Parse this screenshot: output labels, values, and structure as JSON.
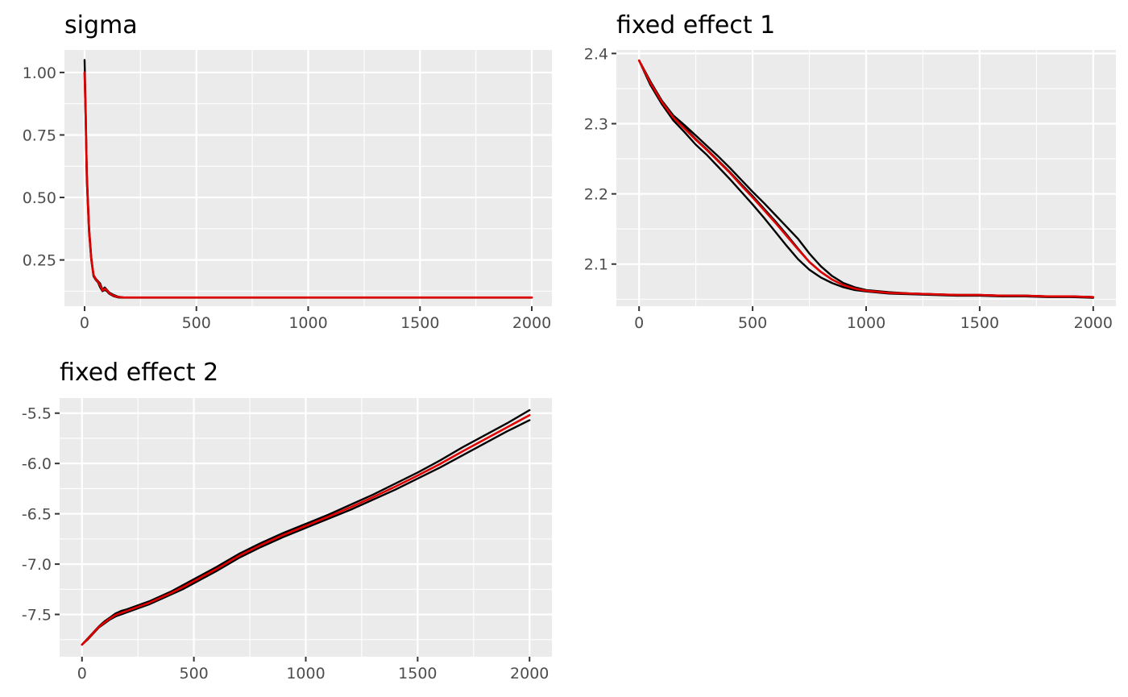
{
  "chart_data": [
    {
      "type": "line",
      "title": "sigma",
      "xlabel": "",
      "ylabel": "",
      "xlim": [
        -90,
        2090
      ],
      "ylim": [
        0.065,
        1.09
      ],
      "x_ticks": [
        0,
        500,
        1000,
        1500,
        2000
      ],
      "x_tick_labels": [
        "0",
        "500",
        "1000",
        "1500",
        "2000"
      ],
      "y_ticks": [
        0.25,
        0.5,
        0.75,
        1.0
      ],
      "y_tick_labels": [
        "0.25",
        "0.50",
        "0.75",
        "1.00"
      ],
      "grid": true,
      "legend": "none",
      "series": [
        {
          "color": "#000000",
          "x": [
            0,
            5,
            10,
            20,
            30,
            40,
            50,
            60,
            70,
            80,
            90,
            100,
            110,
            120,
            130,
            150,
            175,
            200,
            300,
            500,
            1000,
            1500,
            2000
          ],
          "y": [
            1.05,
            0.85,
            0.6,
            0.38,
            0.26,
            0.19,
            0.175,
            0.165,
            0.155,
            0.13,
            0.14,
            0.13,
            0.12,
            0.115,
            0.11,
            0.103,
            0.1,
            0.1,
            0.1,
            0.1,
            0.1,
            0.1,
            0.1
          ]
        },
        {
          "color": "#000000",
          "x": [
            0,
            5,
            10,
            20,
            30,
            40,
            50,
            60,
            70,
            80,
            90,
            100,
            110,
            120,
            130,
            150,
            175,
            200,
            300,
            500,
            1000,
            1500,
            2000
          ],
          "y": [
            1.0,
            0.8,
            0.57,
            0.36,
            0.25,
            0.185,
            0.17,
            0.16,
            0.14,
            0.125,
            0.13,
            0.125,
            0.115,
            0.11,
            0.105,
            0.1,
            0.099,
            0.099,
            0.099,
            0.099,
            0.099,
            0.099,
            0.099
          ]
        },
        {
          "color": "#e00000",
          "x": [
            0,
            5,
            10,
            20,
            30,
            40,
            50,
            60,
            70,
            80,
            90,
            100,
            110,
            120,
            130,
            150,
            175,
            200,
            300,
            500,
            1000,
            1500,
            2000
          ],
          "y": [
            1.0,
            0.82,
            0.58,
            0.37,
            0.255,
            0.19,
            0.172,
            0.162,
            0.148,
            0.128,
            0.135,
            0.128,
            0.118,
            0.112,
            0.107,
            0.102,
            0.1,
            0.1,
            0.1,
            0.1,
            0.1,
            0.1,
            0.1
          ]
        }
      ]
    },
    {
      "type": "line",
      "title": "fixed effect 1",
      "xlabel": "",
      "ylabel": "",
      "xlim": [
        -100,
        2100
      ],
      "ylim": [
        2.04,
        2.405
      ],
      "x_ticks": [
        0,
        500,
        1000,
        1500,
        2000
      ],
      "x_tick_labels": [
        "0",
        "500",
        "1000",
        "1500",
        "2000"
      ],
      "y_ticks": [
        2.1,
        2.2,
        2.3,
        2.4
      ],
      "y_tick_labels": [
        "2.1",
        "2.2",
        "2.3",
        "2.4"
      ],
      "grid": true,
      "legend": "none",
      "series": [
        {
          "color": "#000000",
          "x": [
            0,
            50,
            100,
            150,
            200,
            250,
            300,
            350,
            400,
            450,
            500,
            550,
            600,
            650,
            700,
            750,
            800,
            850,
            900,
            950,
            1000,
            1100,
            1200,
            1300,
            1400,
            1500,
            1600,
            1700,
            1800,
            1900,
            2000
          ],
          "y": [
            2.39,
            2.36,
            2.332,
            2.31,
            2.295,
            2.278,
            2.263,
            2.247,
            2.231,
            2.214,
            2.197,
            2.179,
            2.161,
            2.142,
            2.122,
            2.103,
            2.089,
            2.078,
            2.07,
            2.065,
            2.062,
            2.059,
            2.058,
            2.057,
            2.056,
            2.056,
            2.055,
            2.055,
            2.054,
            2.054,
            2.053
          ]
        },
        {
          "color": "#000000",
          "x": [
            0,
            50,
            100,
            150,
            200,
            250,
            300,
            350,
            400,
            450,
            500,
            550,
            600,
            650,
            700,
            750,
            800,
            850,
            900,
            950,
            1000,
            1100,
            1200,
            1300,
            1400,
            1500,
            1600,
            1700,
            1800,
            1900,
            2000
          ],
          "y": [
            2.39,
            2.355,
            2.328,
            2.305,
            2.288,
            2.27,
            2.255,
            2.238,
            2.221,
            2.203,
            2.185,
            2.166,
            2.146,
            2.126,
            2.107,
            2.092,
            2.081,
            2.073,
            2.067,
            2.063,
            2.061,
            2.058,
            2.057,
            2.056,
            2.055,
            2.055,
            2.054,
            2.054,
            2.053,
            2.053,
            2.052
          ]
        },
        {
          "color": "#000000",
          "x": [
            0,
            50,
            100,
            150,
            200,
            250,
            300,
            350,
            400,
            450,
            500,
            550,
            600,
            650,
            700,
            750,
            800,
            850,
            900,
            950,
            1000,
            1100,
            1200,
            1300,
            1400,
            1500,
            1600,
            1700,
            1800,
            1900,
            2000
          ],
          "y": [
            2.39,
            2.36,
            2.333,
            2.312,
            2.298,
            2.283,
            2.268,
            2.253,
            2.237,
            2.22,
            2.203,
            2.187,
            2.17,
            2.153,
            2.136,
            2.115,
            2.097,
            2.083,
            2.073,
            2.067,
            2.063,
            2.06,
            2.058,
            2.057,
            2.056,
            2.056,
            2.055,
            2.055,
            2.054,
            2.054,
            2.053
          ]
        },
        {
          "color": "#e00000",
          "x": [
            0,
            50,
            100,
            150,
            200,
            250,
            300,
            350,
            400,
            450,
            500,
            550,
            600,
            650,
            700,
            750,
            800,
            850,
            900,
            950,
            1000,
            1100,
            1200,
            1300,
            1400,
            1500,
            1600,
            1700,
            1800,
            1900,
            2000
          ],
          "y": [
            2.39,
            2.358,
            2.331,
            2.309,
            2.293,
            2.277,
            2.262,
            2.246,
            2.23,
            2.212,
            2.195,
            2.177,
            2.159,
            2.14,
            2.121,
            2.103,
            2.089,
            2.078,
            2.07,
            2.065,
            2.062,
            2.059,
            2.058,
            2.057,
            2.056,
            2.056,
            2.055,
            2.055,
            2.054,
            2.054,
            2.053
          ]
        }
      ]
    },
    {
      "type": "line",
      "title": "fixed effect 2",
      "xlabel": "",
      "ylabel": "",
      "xlim": [
        -100,
        2100
      ],
      "ylim": [
        -7.92,
        -5.35
      ],
      "x_ticks": [
        0,
        500,
        1000,
        1500,
        2000
      ],
      "x_tick_labels": [
        "0",
        "500",
        "1000",
        "1500",
        "2000"
      ],
      "y_ticks": [
        -7.5,
        -7.0,
        -6.5,
        -6.0,
        -5.5
      ],
      "y_tick_labels": [
        "-7.5",
        "-7.0",
        "-6.5",
        "-6.0",
        "-5.5"
      ],
      "grid": true,
      "legend": "none",
      "series": [
        {
          "color": "#000000",
          "x": [
            0,
            25,
            50,
            75,
            100,
            125,
            150,
            175,
            200,
            250,
            300,
            350,
            400,
            450,
            500,
            600,
            700,
            800,
            900,
            1000,
            1100,
            1200,
            1300,
            1400,
            1500,
            1600,
            1700,
            1800,
            1900,
            2000
          ],
          "y": [
            -7.8,
            -7.74,
            -7.68,
            -7.62,
            -7.57,
            -7.53,
            -7.49,
            -7.465,
            -7.45,
            -7.41,
            -7.37,
            -7.32,
            -7.27,
            -7.21,
            -7.15,
            -7.03,
            -6.9,
            -6.79,
            -6.69,
            -6.6,
            -6.51,
            -6.41,
            -6.31,
            -6.2,
            -6.09,
            -5.97,
            -5.84,
            -5.72,
            -5.6,
            -5.47
          ]
        },
        {
          "color": "#000000",
          "x": [
            0,
            25,
            50,
            75,
            100,
            125,
            150,
            175,
            200,
            250,
            300,
            350,
            400,
            450,
            500,
            600,
            700,
            800,
            900,
            1000,
            1100,
            1200,
            1300,
            1400,
            1500,
            1600,
            1700,
            1800,
            1900,
            2000
          ],
          "y": [
            -7.8,
            -7.75,
            -7.69,
            -7.63,
            -7.59,
            -7.55,
            -7.52,
            -7.5,
            -7.48,
            -7.44,
            -7.4,
            -7.35,
            -7.3,
            -7.25,
            -7.19,
            -7.07,
            -6.94,
            -6.83,
            -6.73,
            -6.64,
            -6.55,
            -6.46,
            -6.36,
            -6.26,
            -6.15,
            -6.04,
            -5.92,
            -5.8,
            -5.68,
            -5.57
          ]
        },
        {
          "color": "#e00000",
          "x": [
            0,
            25,
            50,
            75,
            100,
            125,
            150,
            175,
            200,
            250,
            300,
            350,
            400,
            450,
            500,
            600,
            700,
            800,
            900,
            1000,
            1100,
            1200,
            1300,
            1400,
            1500,
            1600,
            1700,
            1800,
            1900,
            2000
          ],
          "y": [
            -7.8,
            -7.745,
            -7.685,
            -7.625,
            -7.58,
            -7.54,
            -7.505,
            -7.485,
            -7.465,
            -7.425,
            -7.385,
            -7.335,
            -7.285,
            -7.23,
            -7.17,
            -7.05,
            -6.92,
            -6.81,
            -6.71,
            -6.62,
            -6.53,
            -6.435,
            -6.335,
            -6.23,
            -6.12,
            -6.005,
            -5.88,
            -5.76,
            -5.64,
            -5.52
          ]
        }
      ]
    }
  ]
}
